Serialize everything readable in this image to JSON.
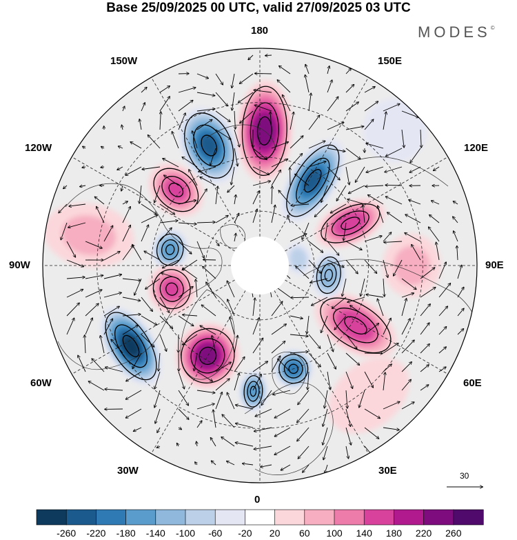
{
  "header": {
    "title": "Base 25/09/2025 00 UTC, valid 27/09/2025 03 UTC",
    "logo": "MODES",
    "logo_mark": "©"
  },
  "map": {
    "projection": "north-polar-stereographic",
    "longitude_labels": {
      "top": "180",
      "bottom": "0",
      "left": "90W",
      "right": "90E",
      "upper_left_1": "150W",
      "upper_left_2": "120W",
      "upper_right_1": "150E",
      "upper_right_2": "120E",
      "lower_left_1": "60W",
      "lower_left_2": "30W",
      "lower_right_1": "60E",
      "lower_right_2": "30E"
    },
    "vector_reference": "30"
  },
  "colorbar": {
    "labels": [
      "-260",
      "-220",
      "-180",
      "-140",
      "-100",
      "-60",
      "-20",
      "20",
      "60",
      "100",
      "140",
      "180",
      "220",
      "260"
    ],
    "colors": [
      "#0e3a5e",
      "#1a5a8c",
      "#2f7ab5",
      "#5a9dcc",
      "#8fb8dc",
      "#bcd0e8",
      "#e4e6f4",
      "#ffffff",
      "#fbd7db",
      "#f6aec0",
      "#ee7cab",
      "#d8429c",
      "#b01a8e",
      "#7e0c7e",
      "#4f0a6b"
    ]
  },
  "anomalies": [
    {
      "name": "neg-150w",
      "lon": -157,
      "r": 0.6,
      "rx": 34,
      "ry": 52,
      "value": -220
    },
    {
      "name": "pos-180",
      "lon": 178,
      "r": 0.62,
      "rx": 34,
      "ry": 68,
      "value": 240
    },
    {
      "name": "neg-150e",
      "lon": 148,
      "r": 0.46,
      "rx": 27,
      "ry": 62,
      "value": -220
    },
    {
      "name": "pos-120e",
      "lon": 115,
      "r": 0.46,
      "rx": 24,
      "ry": 48,
      "value": 170
    },
    {
      "name": "pos-130w",
      "lon": -132,
      "r": 0.52,
      "rx": 28,
      "ry": 38,
      "value": 140
    },
    {
      "name": "neg-100w",
      "lon": -100,
      "r": 0.42,
      "rx": 24,
      "ry": 20,
      "value": -140
    },
    {
      "name": "pos-75w",
      "lon": -75,
      "r": 0.42,
      "rx": 30,
      "ry": 28,
      "value": 140
    },
    {
      "name": "neg-60w",
      "lon": -58,
      "r": 0.7,
      "rx": 58,
      "ry": 28,
      "value": -260
    },
    {
      "name": "pos-30w",
      "lon": -30,
      "r": 0.48,
      "rx": 40,
      "ry": 42,
      "value": 230
    },
    {
      "name": "neg-20e",
      "lon": 18,
      "r": 0.5,
      "rx": 22,
      "ry": 22,
      "value": -180
    },
    {
      "name": "neg-10w",
      "lon": -3,
      "r": 0.58,
      "rx": 14,
      "ry": 24,
      "value": -140
    },
    {
      "name": "pos-60e",
      "lon": 58,
      "r": 0.52,
      "rx": 32,
      "ry": 60,
      "value": 170
    },
    {
      "name": "neg-80e",
      "lon": 82,
      "r": 0.32,
      "rx": 28,
      "ry": 18,
      "value": -120
    },
    {
      "name": "neg-100e",
      "lon": 100,
      "r": 0.18,
      "rx": 18,
      "ry": 12,
      "value": -60
    },
    {
      "name": "pos-100w-outer",
      "lon": -100,
      "r": 0.8,
      "rx": 40,
      "ry": 60,
      "value": 60
    },
    {
      "name": "pos-90e-outer",
      "lon": 90,
      "r": 0.7,
      "rx": 40,
      "ry": 36,
      "value": 60
    },
    {
      "name": "pos-40e-outer",
      "lon": 40,
      "r": 0.78,
      "rx": 60,
      "ry": 40,
      "value": 40
    },
    {
      "name": "neg-135e-outer",
      "lon": 135,
      "r": 0.88,
      "rx": 40,
      "ry": 40,
      "value": -40
    }
  ]
}
